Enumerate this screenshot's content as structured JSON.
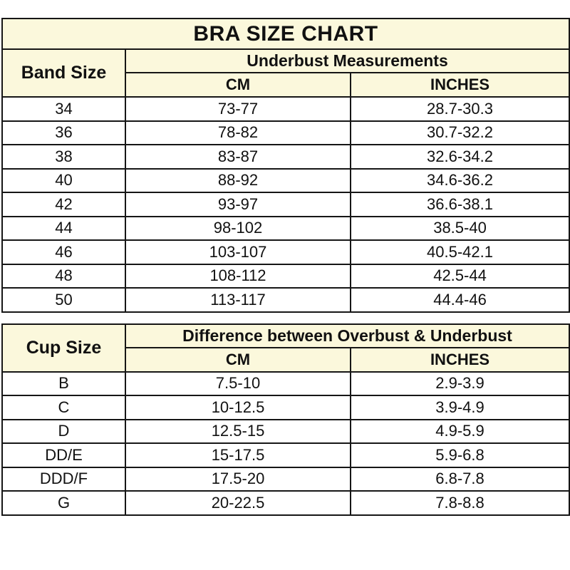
{
  "title": "BRA SIZE CHART",
  "colors": {
    "header_background": "#fbf8dc",
    "row_background": "#ffffff",
    "border": "#161616",
    "text": "#111111"
  },
  "chart_data": [
    {
      "type": "table",
      "title": "BRA SIZE CHART",
      "row_header": "Band Size",
      "group_header": "Underbust Measurements",
      "columns": [
        "CM",
        "INCHES"
      ],
      "rows": [
        [
          "34",
          "73-77",
          "28.7-30.3"
        ],
        [
          "36",
          "78-82",
          "30.7-32.2"
        ],
        [
          "38",
          "83-87",
          "32.6-34.2"
        ],
        [
          "40",
          "88-92",
          "34.6-36.2"
        ],
        [
          "42",
          "93-97",
          "36.6-38.1"
        ],
        [
          "44",
          "98-102",
          "38.5-40"
        ],
        [
          "46",
          "103-107",
          "40.5-42.1"
        ],
        [
          "48",
          "108-112",
          "42.5-44"
        ],
        [
          "50",
          "113-117",
          "44.4-46"
        ]
      ]
    },
    {
      "type": "table",
      "row_header": "Cup Size",
      "group_header": "Difference between Overbust & Underbust",
      "columns": [
        "CM",
        "INCHES"
      ],
      "rows": [
        [
          "B",
          "7.5-10",
          "2.9-3.9"
        ],
        [
          "C",
          "10-12.5",
          "3.9-4.9"
        ],
        [
          "D",
          "12.5-15",
          "4.9-5.9"
        ],
        [
          "DD/E",
          "15-17.5",
          "5.9-6.8"
        ],
        [
          "DDD/F",
          "17.5-20",
          "6.8-7.8"
        ],
        [
          "G",
          "20-22.5",
          "7.8-8.8"
        ]
      ]
    }
  ]
}
